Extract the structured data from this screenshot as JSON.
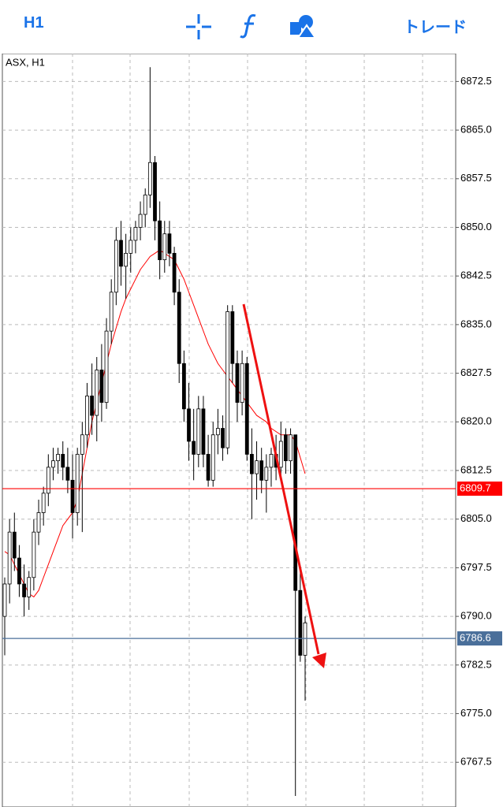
{
  "toolbar": {
    "timeframe": "H1",
    "trade": "トレード"
  },
  "chart_data": {
    "type": "candlestick",
    "title": "ASX, H1",
    "up_color": "#ffffff",
    "down_color": "#000000",
    "grid": true,
    "ylim": [
      6760.6,
      6876.8
    ],
    "yticks": [
      6872.5,
      {
        "value": 6865,
        "label": "6865.0"
      },
      6857.5,
      {
        "value": 6850,
        "label": "6850.0"
      },
      6842.5,
      {
        "value": 6835,
        "label": "6835.0"
      },
      6827.5,
      {
        "value": 6820,
        "label": "6820.0"
      },
      6812.5,
      {
        "value": 6805,
        "label": "6805.0"
      },
      6797.5,
      {
        "value": 6790,
        "label": "6790.0"
      },
      6782.5,
      {
        "value": 6775,
        "label": "6775.0"
      },
      6767.5
    ],
    "open": [
      6790,
      6795,
      6803,
      6799,
      6795,
      6793,
      6796,
      6803,
      6806,
      6809,
      6813,
      6814,
      6815,
      6813,
      6811,
      6806,
      6815,
      6818,
      6824,
      6821,
      6828,
      6823,
      6834,
      6840,
      6848,
      6844,
      6846,
      6848,
      6850,
      6852,
      6855,
      6860,
      6851,
      6845,
      6849,
      6846,
      6840,
      6829,
      6822,
      6817,
      6815,
      6822,
      6815,
      6811,
      6818,
      6819,
      6816,
      6837,
      6829,
      6823,
      6829,
      6815,
      6812,
      6814,
      6811,
      6813,
      6815,
      6813,
      6818,
      6814,
      6818,
      6794,
      6784
    ],
    "high": [
      6796,
      6805,
      6806,
      6801,
      6798,
      6797,
      6805,
      6808,
      6810,
      6815,
      6816,
      6816,
      6817,
      6816,
      6815,
      6816,
      6820,
      6826,
      6829,
      6830,
      6832,
      6836,
      6842,
      6850,
      6851,
      6849,
      6850,
      6851,
      6854,
      6856,
      6874.7,
      6861,
      6854,
      6851,
      6851,
      6847,
      6842,
      6831,
      6826,
      6822,
      6824,
      6824,
      6818,
      6820,
      6822,
      6821,
      6838,
      6838,
      6831,
      6831,
      6830,
      6819,
      6817,
      6816,
      6815,
      6816,
      6818,
      6820,
      6819,
      6819,
      6818,
      6797,
      6790
    ],
    "low": [
      6784,
      6792,
      6797,
      6793,
      6790,
      6791,
      6794,
      6801,
      6804,
      6807,
      6811,
      6812,
      6811,
      6809,
      6802,
      6804,
      6803,
      6816,
      6818,
      6817,
      6820,
      6822,
      6832,
      6838,
      6841,
      6839,
      6843,
      6846,
      6848,
      6850,
      6853,
      6848,
      6842,
      6843,
      6844,
      6838,
      6826,
      6820,
      6814,
      6811,
      6813,
      6813,
      6810,
      6810,
      6815,
      6814,
      6815,
      6826,
      6820,
      6821,
      6814,
      6805,
      6808,
      6809,
      6806,
      6810,
      6811,
      6811,
      6812,
      6812,
      6762.3,
      6783,
      6777
    ],
    "close": [
      6795,
      6803,
      6799,
      6795,
      6793,
      6796,
      6803,
      6806,
      6809,
      6813,
      6814,
      6815,
      6813,
      6811,
      6806,
      6815,
      6818,
      6824,
      6821,
      6828,
      6823,
      6834,
      6840,
      6848,
      6844,
      6846,
      6848,
      6850,
      6852,
      6855,
      6860,
      6851,
      6845,
      6849,
      6846,
      6840,
      6829,
      6822,
      6817,
      6815,
      6822,
      6815,
      6811,
      6818,
      6819,
      6816,
      6837,
      6829,
      6823,
      6829,
      6815,
      6812,
      6814,
      6811,
      6813,
      6815,
      6813,
      6817,
      6814,
      6818,
      6794,
      6784,
      6789
    ],
    "ma": {
      "color": "#ff0000",
      "values": [
        6800,
        6799.5,
        6798,
        6796.5,
        6795,
        6793.5,
        6793,
        6794,
        6796,
        6798,
        6800,
        6802,
        6804,
        6805,
        6806,
        6808,
        6812,
        6816,
        6820,
        6823,
        6826,
        6829,
        6832,
        6834.5,
        6837,
        6839,
        6840.5,
        6842,
        6843.5,
        6844.5,
        6845.5,
        6846,
        6846.5,
        6846,
        6845.5,
        6845,
        6843.5,
        6842,
        6840,
        6838,
        6836,
        6834,
        6832,
        6830.5,
        6829,
        6828,
        6827,
        6826,
        6825,
        6824,
        6823,
        6822,
        6821,
        6820.5,
        6820,
        6819,
        6818.5,
        6818,
        6818,
        6818,
        6817,
        6814.5,
        6812
      ]
    },
    "hlines": [
      {
        "value": 6809.7,
        "color": "#ff0000"
      },
      {
        "value": 6786.6,
        "color": "#4a6f9a"
      }
    ]
  }
}
